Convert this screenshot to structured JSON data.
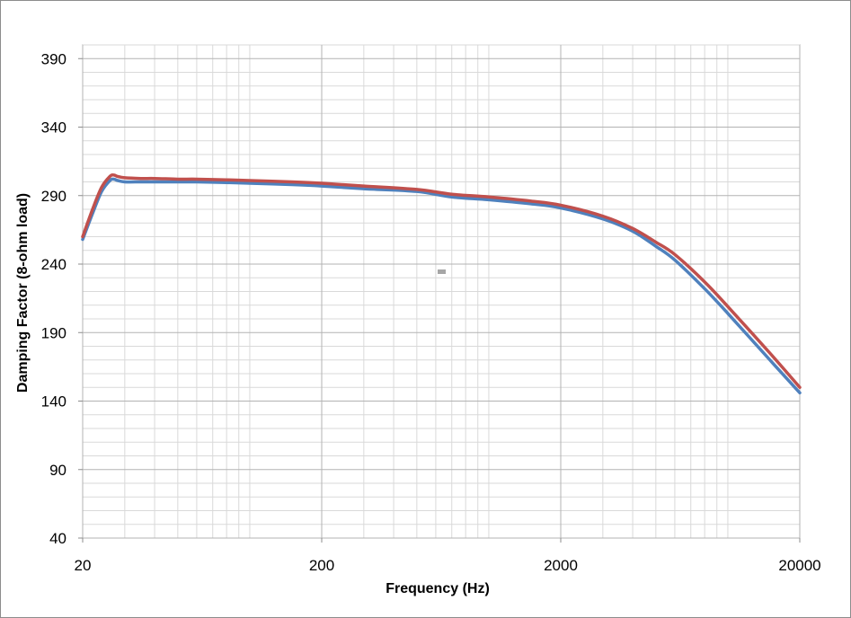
{
  "chart_data": {
    "type": "line",
    "title": "",
    "xlabel": "Frequency (Hz)",
    "ylabel": "Damping Factor (8-ohm load)",
    "x_scale": "log",
    "xlim": [
      20,
      20000
    ],
    "ylim": [
      40,
      400
    ],
    "x_tick_labels": [
      "20",
      "200",
      "2000",
      "20000"
    ],
    "y_tick_labels": [
      "40",
      "90",
      "140",
      "190",
      "240",
      "290",
      "340",
      "390"
    ],
    "grid": true,
    "legend": "none",
    "series": [
      {
        "color": "#4f81bd",
        "x": [
          20,
          22,
          24,
          26,
          27,
          28,
          30,
          35,
          40,
          50,
          60,
          80,
          100,
          150,
          200,
          300,
          500,
          700,
          1000,
          1500,
          2000,
          3000,
          4000,
          5000,
          6000,
          8000,
          10000,
          15000,
          20000
        ],
        "y": [
          258,
          277,
          293,
          301,
          302,
          301,
          300,
          300,
          300,
          300,
          300,
          299.5,
          299,
          298,
          297,
          295,
          293,
          289,
          287,
          284,
          281,
          273,
          264,
          253,
          243,
          222,
          204,
          170,
          146
        ]
      },
      {
        "color": "#c0504d",
        "x": [
          20,
          22,
          24,
          26,
          27,
          28,
          30,
          35,
          40,
          50,
          60,
          80,
          100,
          150,
          200,
          300,
          500,
          700,
          1000,
          1500,
          2000,
          3000,
          4000,
          5000,
          6000,
          8000,
          10000,
          15000,
          20000
        ],
        "y": [
          260,
          280,
          296,
          304,
          305,
          304,
          303,
          302.5,
          302.5,
          302,
          302,
          301.5,
          301,
          300,
          299,
          297,
          294.5,
          291,
          289,
          286,
          283,
          275,
          266,
          256,
          247,
          227,
          209,
          175,
          150
        ]
      }
    ],
    "annotations": []
  }
}
